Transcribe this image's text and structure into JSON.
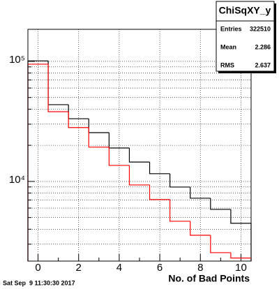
{
  "chart_data": {
    "type": "histogram",
    "bins": [
      -0.5,
      0.5,
      1.5,
      2.5,
      3.5,
      4.5,
      5.5,
      6.5,
      7.5,
      8.5,
      9.5,
      10.5
    ],
    "series": [
      {
        "color": "#000000",
        "values": [
          101000,
          43600,
          33300,
          25500,
          19000,
          14500,
          11600,
          8980,
          7250,
          5850,
          4480
        ]
      },
      {
        "color": "#ff0000",
        "values": [
          94800,
          38100,
          28100,
          19300,
          13600,
          9350,
          7060,
          4660,
          3560,
          2550,
          2300
        ]
      }
    ],
    "xlim": [
      -0.5,
      10.5
    ],
    "xticks": [
      0,
      2,
      4,
      6,
      8,
      10
    ],
    "xminor_ticks": [
      1,
      3,
      5,
      7,
      9
    ],
    "xlabel": "No. of Bad Points",
    "ylim": [
      2170,
      185000
    ],
    "ylog": true,
    "yticks": [
      {
        "value": 10000,
        "label": "10⁴"
      },
      {
        "value": 100000,
        "label": "10⁵"
      }
    ],
    "yminor_ticks": [
      3000,
      4000,
      5000,
      6000,
      7000,
      8000,
      9000,
      20000,
      30000,
      40000,
      50000,
      60000,
      70000,
      80000,
      90000
    ],
    "grid": true,
    "stats": {
      "title": "ChiSqXY_y",
      "rows": [
        [
          "Entries",
          322510
        ],
        [
          "Mean",
          2.286
        ],
        [
          "RMS",
          2.637
        ]
      ]
    },
    "timestamp": "Sat Sep  9 11:30:30 2017"
  }
}
